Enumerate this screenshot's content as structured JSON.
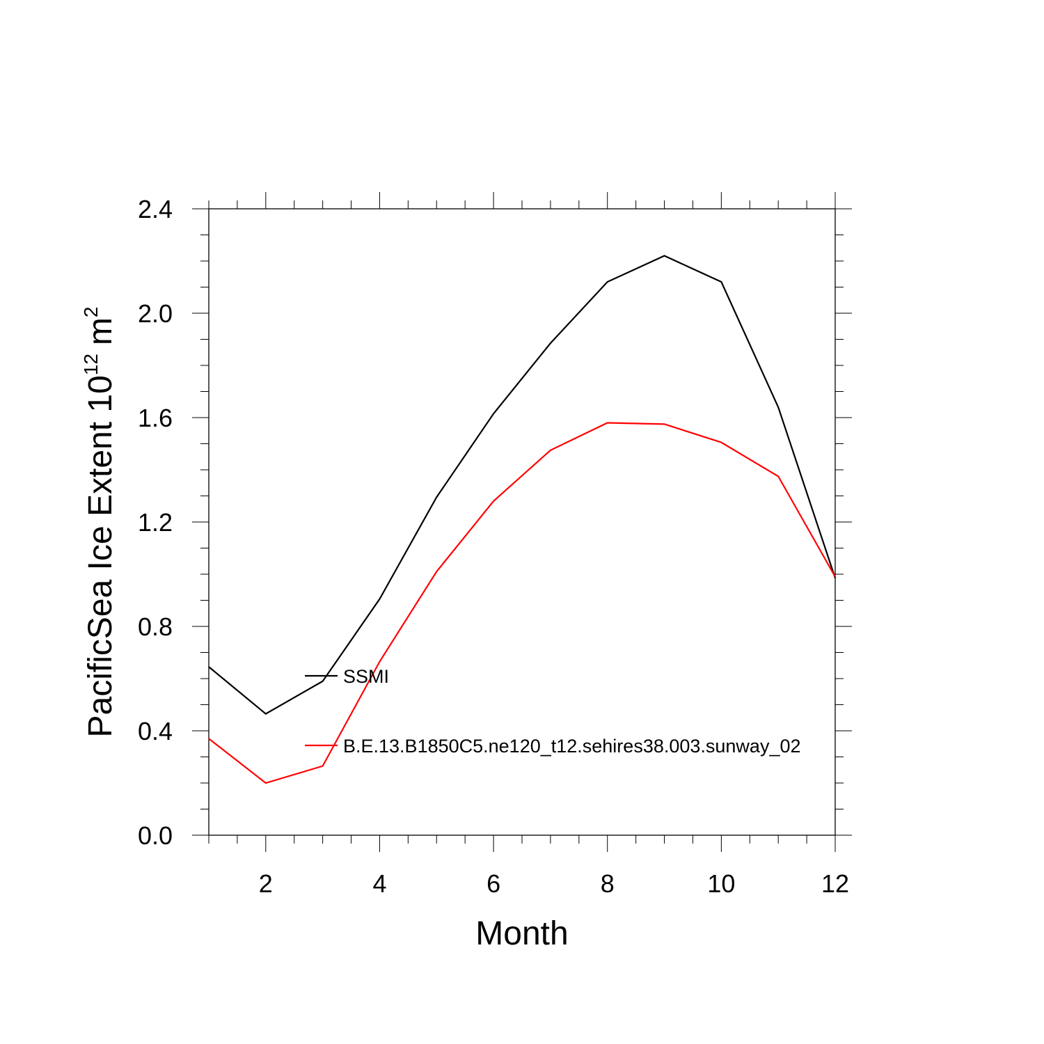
{
  "chart_data": {
    "type": "line",
    "title": "",
    "xlabel": "Month",
    "ylabel": {
      "text": "PacificSea Ice Extent 10",
      "exponent": "12",
      "unit": "m",
      "unit_exponent": "2"
    },
    "xlim": [
      1,
      12
    ],
    "ylim": [
      0,
      2.4
    ],
    "x": [
      1,
      2,
      3,
      4,
      5,
      6,
      7,
      8,
      9,
      10,
      11,
      12
    ],
    "x_ticks": [
      "2",
      "4",
      "6",
      "8",
      "10",
      "12"
    ],
    "y_ticks": [
      "0.0",
      "0.4",
      "0.8",
      "1.2",
      "1.6",
      "2.0",
      "2.4"
    ],
    "grid": false,
    "legend_position": "center-left, inside plot",
    "series": [
      {
        "name": "SSMI",
        "color": "#000000",
        "values": [
          0.645,
          0.465,
          0.59,
          0.905,
          1.295,
          1.615,
          1.885,
          2.12,
          2.22,
          2.12,
          1.64,
          0.985
        ]
      },
      {
        "name": "B.E.13.B1850C5.ne120_t12.sehires38.003.sunway_02",
        "color": "#ff0000",
        "values": [
          0.37,
          0.2,
          0.265,
          0.665,
          1.01,
          1.28,
          1.475,
          1.58,
          1.575,
          1.505,
          1.375,
          0.99
        ]
      }
    ]
  }
}
